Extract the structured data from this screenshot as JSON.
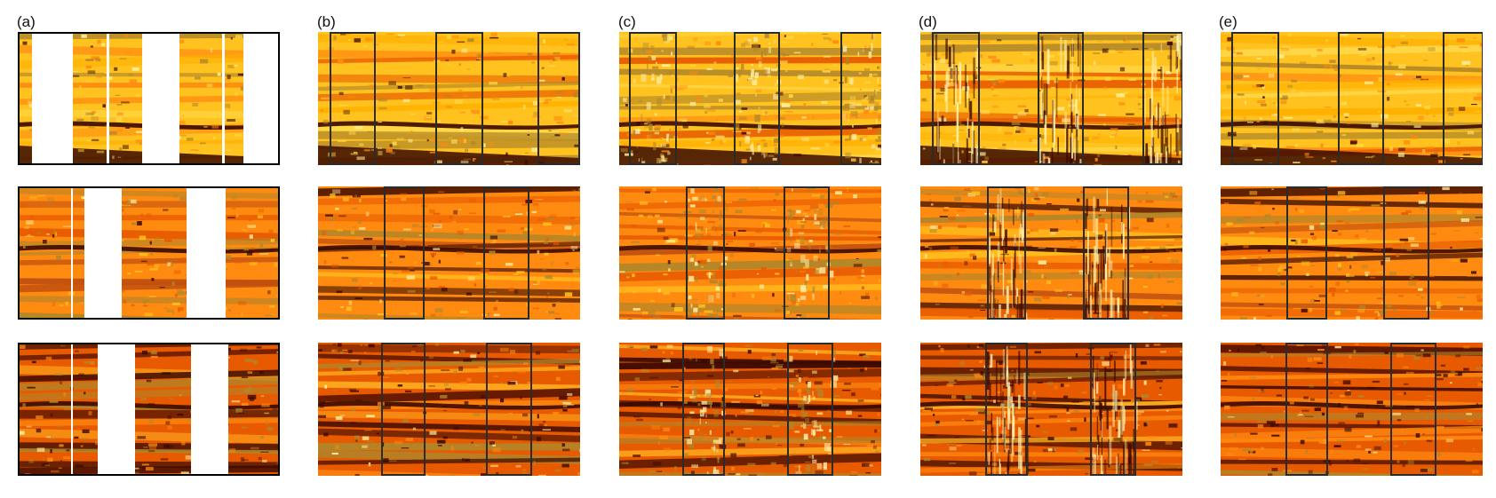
{
  "columns": [
    {
      "label": "(a)",
      "kind": "masked-input"
    },
    {
      "label": "(b)",
      "kind": "reconstruction"
    },
    {
      "label": "(c)",
      "kind": "reconstruction"
    },
    {
      "label": "(d)",
      "kind": "reconstruction"
    },
    {
      "label": "(e)",
      "kind": "reconstruction"
    }
  ],
  "rows": [
    {
      "theme": "bright"
    },
    {
      "theme": "orange"
    },
    {
      "theme": "dark"
    }
  ],
  "colors": {
    "dark_band": "#3a0a00",
    "bright": "#ffc21e",
    "orange": "#ff8a10",
    "deep_orange": "#e85a00",
    "olive": "#b0862a",
    "box_outline": "#2b2b2b",
    "frame": "#000000",
    "mask": "#ffffff"
  }
}
